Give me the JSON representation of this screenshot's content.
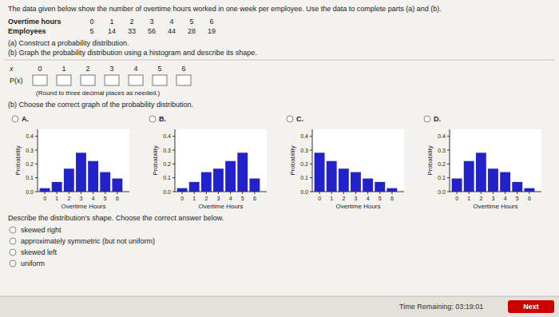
{
  "chart_data": [
    {
      "type": "bar",
      "title": "A.",
      "x": [
        0,
        1,
        2,
        3,
        4,
        5,
        6
      ],
      "values": [
        0.025,
        0.07,
        0.166,
        0.281,
        0.221,
        0.141,
        0.095
      ],
      "color": "#2222cc",
      "xlabel": "Overtime Hours",
      "ylabel": "Probability",
      "xlim": [
        -0.6,
        7.0
      ],
      "ylim": [
        0,
        0.45
      ],
      "xticks": [
        0,
        1,
        2,
        3,
        4,
        5,
        6
      ],
      "yticks": [
        {
          "value": 0.0,
          "label": "0.0"
        },
        0.1,
        0.2,
        0.3,
        0.4
      ],
      "grid": false
    },
    {
      "type": "bar",
      "title": "B.",
      "x": [
        0,
        1,
        2,
        3,
        4,
        5,
        6
      ],
      "values": [
        0.025,
        0.07,
        0.141,
        0.166,
        0.221,
        0.281,
        0.095
      ],
      "color": "#2222cc",
      "xlabel": "Overtime Hours",
      "ylabel": "Probability",
      "xlim": [
        -0.6,
        7.0
      ],
      "ylim": [
        0,
        0.45
      ],
      "xticks": [
        0,
        1,
        2,
        3,
        4,
        5,
        6
      ],
      "yticks": [
        {
          "value": 0.0,
          "label": "0.0"
        },
        0.1,
        0.2,
        0.3,
        0.4
      ],
      "grid": false
    },
    {
      "type": "bar",
      "title": "C.",
      "x": [
        0,
        1,
        2,
        3,
        4,
        5,
        6
      ],
      "values": [
        0.281,
        0.221,
        0.166,
        0.141,
        0.095,
        0.07,
        0.025
      ],
      "color": "#2222cc",
      "xlabel": "Overtime Hours",
      "ylabel": "Probability",
      "xlim": [
        -0.6,
        7.0
      ],
      "ylim": [
        0,
        0.45
      ],
      "xticks": [
        0,
        1,
        2,
        3,
        4,
        5,
        6
      ],
      "yticks": [
        {
          "value": 0.0,
          "label": "0.0"
        },
        0.1,
        0.2,
        0.3,
        0.4
      ],
      "grid": false
    },
    {
      "type": "bar",
      "title": "D.",
      "x": [
        0,
        1,
        2,
        3,
        4,
        5,
        6
      ],
      "values": [
        0.095,
        0.221,
        0.281,
        0.166,
        0.141,
        0.07,
        0.025
      ],
      "color": "#2222cc",
      "xlabel": "Overtime Hours",
      "ylabel": "Probability",
      "xlim": [
        -0.6,
        7.0
      ],
      "ylim": [
        0,
        0.45
      ],
      "xticks": [
        0,
        1,
        2,
        3,
        4,
        5,
        6
      ],
      "yticks": [
        {
          "value": 0.0,
          "label": "0.0"
        },
        0.1,
        0.2,
        0.3,
        0.4
      ],
      "grid": false
    }
  ],
  "page": {
    "intro": "The data given below show the number of overtime hours worked in one week per employee. Use the data to complete parts (a) and (b).",
    "hours_label": "Overtime hours",
    "hours": [
      0,
      1,
      2,
      3,
      4,
      5,
      6
    ],
    "employees_label": "Employees",
    "employees": [
      5,
      14,
      33,
      56,
      44,
      28,
      19
    ],
    "part_a": "(a) Construct a probability distribution.",
    "part_b": "(b) Graph the probability distribution using a histogram and describe its shape.",
    "x_label": "x",
    "p_label": "P(x)",
    "round_note": "(Round to three decimal places as needed.)",
    "choose_graph": "(b) Choose the correct graph of the probability distribution.",
    "describe": "Describe the distribution's shape. Choose the correct answer below.",
    "shape_options": [
      "skewed right",
      "approximately symmetric (but not uniform)",
      "skewed left",
      "uniform"
    ],
    "footer": "Time Remaining: 03:19:01",
    "button": "Next",
    "button_color": "#cc0000"
  }
}
